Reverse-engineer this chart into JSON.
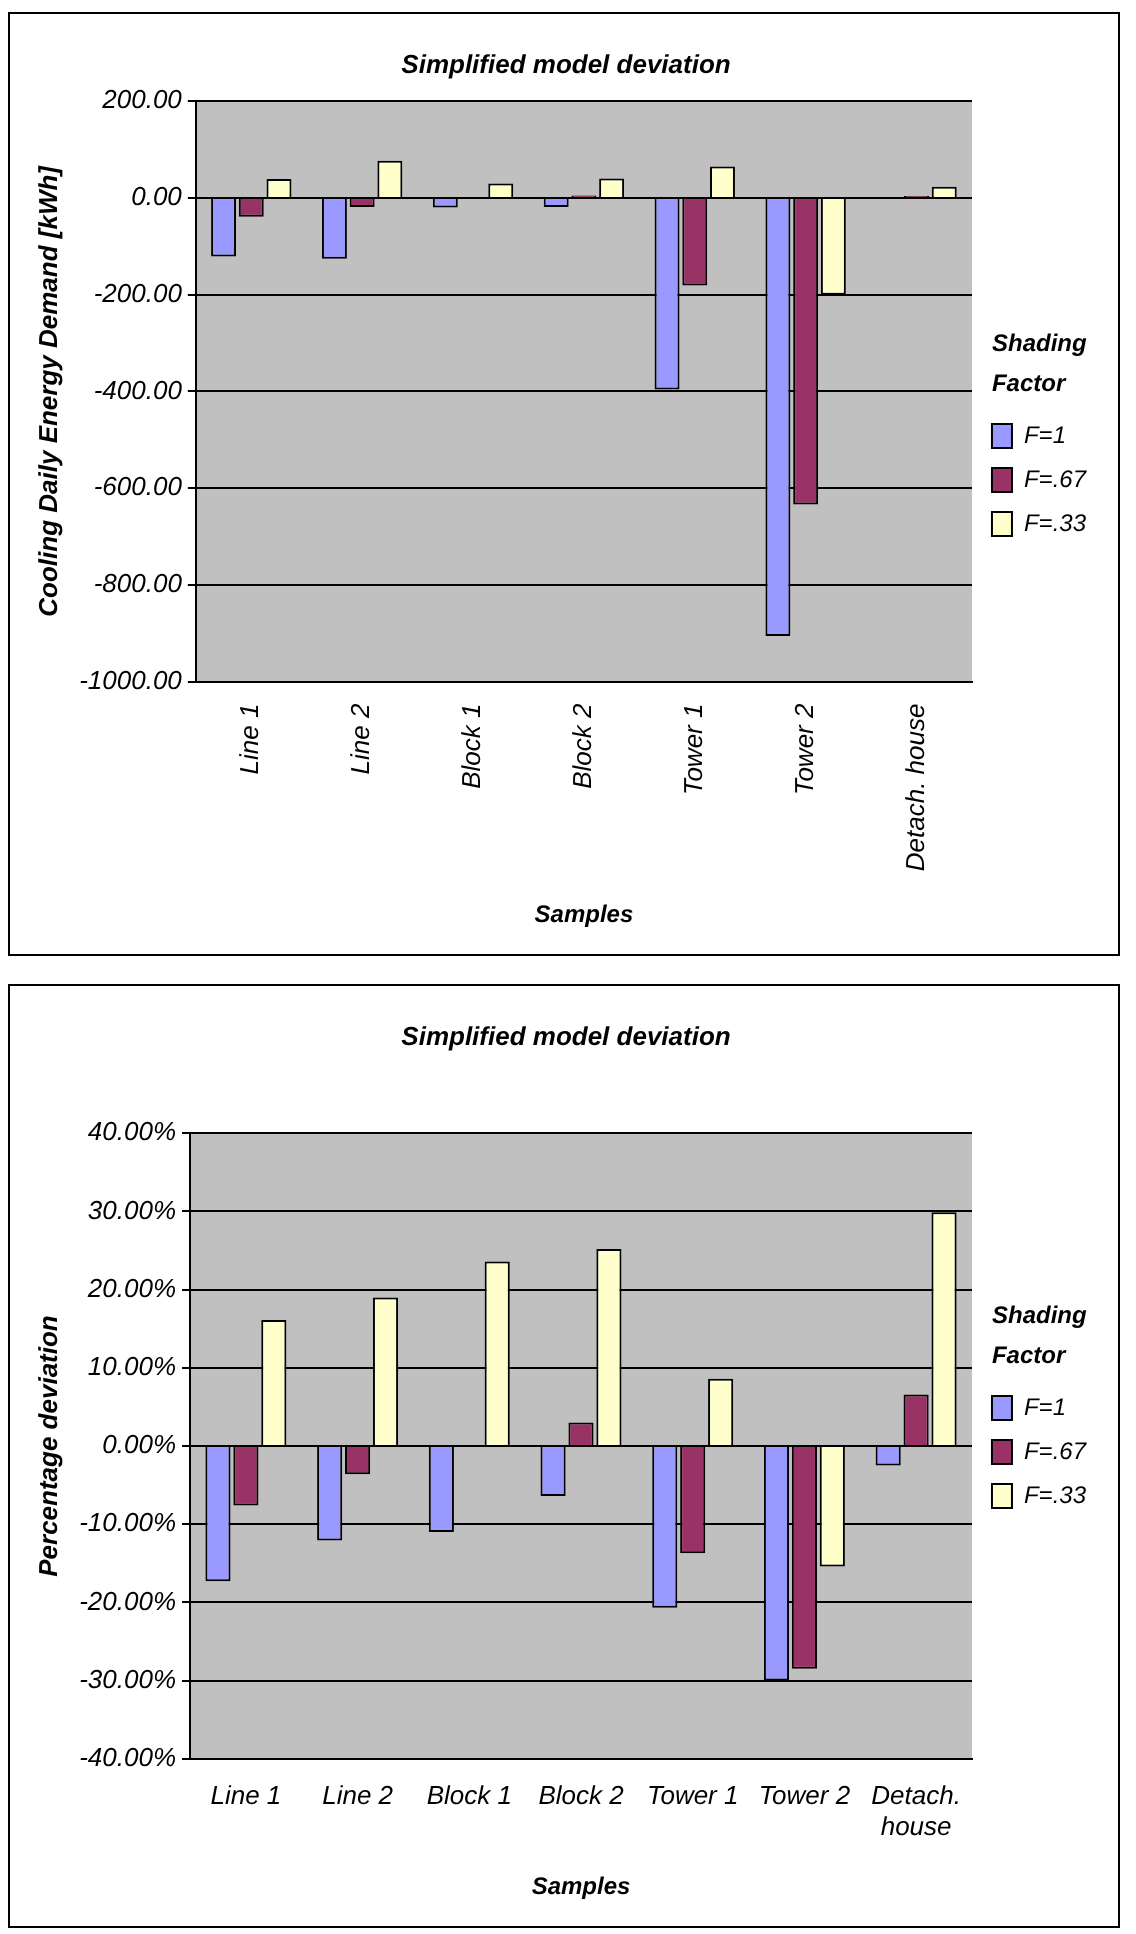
{
  "chart_data": [
    {
      "type": "bar",
      "title": "Simplified model deviation",
      "xlabel": "Samples",
      "ylabel": "Cooling Daily Energy Demand [kWh]",
      "legend_title": "Shading Factor",
      "legend": "right",
      "grid": "y",
      "categories": [
        "Line 1",
        "Line 2",
        "Block 1",
        "Block 2",
        "Tower 1",
        "Tower 2",
        "Detach. house"
      ],
      "ylim": [
        -1000,
        200
      ],
      "yticks": [
        {
          "value": -1000,
          "label": "-1000.00"
        },
        {
          "value": -800,
          "label": "-800.00"
        },
        {
          "value": -600,
          "label": "-600.00"
        },
        {
          "value": -400,
          "label": "-400.00"
        },
        {
          "value": -200,
          "label": "-200.00"
        },
        {
          "value": 0,
          "label": "0.00"
        },
        {
          "value": 200,
          "label": "200.00"
        }
      ],
      "series": [
        {
          "name": "F=1",
          "color": "#9999ff",
          "values": [
            -121,
            -126,
            -20,
            -19,
            -396,
            -906,
            0
          ]
        },
        {
          "name": "F=.67",
          "color": "#993366",
          "values": [
            -39,
            -19,
            0,
            5,
            -181,
            -634,
            4
          ]
        },
        {
          "name": "F=.33",
          "color": "#ffffcc",
          "values": [
            39,
            77,
            30,
            40,
            65,
            -200,
            23
          ]
        }
      ]
    },
    {
      "type": "bar",
      "title": "Simplified model deviation",
      "xlabel": "Samples",
      "ylabel": "Percentage deviation",
      "legend_title": "Shading Factor",
      "legend": "right",
      "grid": "y",
      "categories": [
        "Line 1",
        "Line 2",
        "Block 1",
        "Block 2",
        "Tower 1",
        "Tower 2",
        "Detach. house"
      ],
      "ylim": [
        -40,
        40
      ],
      "yticks": [
        {
          "value": -40,
          "label": "-40.00%"
        },
        {
          "value": -30,
          "label": "-30.00%"
        },
        {
          "value": -20,
          "label": "-20.00%"
        },
        {
          "value": -10,
          "label": "-10.00%"
        },
        {
          "value": 0,
          "label": "0.00%"
        },
        {
          "value": 10,
          "label": "10.00%"
        },
        {
          "value": 20,
          "label": "20.00%"
        },
        {
          "value": 30,
          "label": "30.00%"
        },
        {
          "value": 40,
          "label": "40.00%"
        }
      ],
      "series": [
        {
          "name": "F=1",
          "color": "#9999ff",
          "values": [
            -17.3,
            -12.1,
            -11.0,
            -6.4,
            -20.7,
            -30.0,
            -2.5
          ]
        },
        {
          "name": "F=.67",
          "color": "#993366",
          "values": [
            -7.6,
            -3.6,
            0,
            3.0,
            -13.7,
            -28.5,
            6.6
          ]
        },
        {
          "name": "F=.33",
          "color": "#ffffcc",
          "values": [
            16.1,
            19.0,
            23.6,
            25.2,
            8.6,
            -15.4,
            29.9
          ]
        }
      ]
    }
  ]
}
